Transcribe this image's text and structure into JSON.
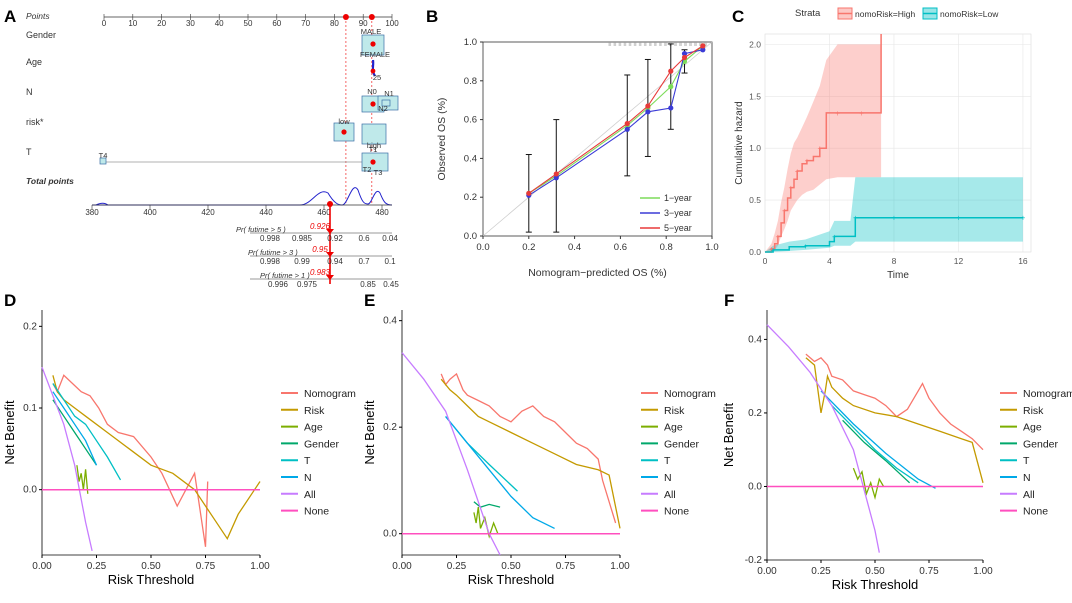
{
  "panel_labels": [
    "A",
    "B",
    "C",
    "D",
    "E",
    "F"
  ],
  "colors": {
    "nomogram": "#f8766d",
    "risk": "#c49a00",
    "age": "#7cae00",
    "gender": "#00a86b",
    "t": "#00bfc4",
    "n": "#00a9e8",
    "all": "#c77cff",
    "none": "#ff4fbf",
    "year1": "#7ddc5a",
    "year3": "#3b3bd6",
    "year5": "#e83a3a",
    "high": "#f8766d",
    "low": "#00bfc4"
  },
  "chart_data": [
    {
      "panel": "A",
      "type": "nomogram",
      "points_label": "Points",
      "points_ticks": [
        "0",
        "10",
        "20",
        "30",
        "40",
        "50",
        "60",
        "70",
        "80",
        "90",
        "100"
      ],
      "gender": {
        "label": "Gender",
        "levels": [
          "MALE",
          "FEMALE"
        ]
      },
      "age": {
        "label": "Age",
        "levels": [
          "25"
        ]
      },
      "n": {
        "label": "N",
        "levels": [
          "N0",
          "N1",
          "N2"
        ]
      },
      "risk": {
        "label": "risk*",
        "levels": [
          "low",
          "high"
        ]
      },
      "t": {
        "label": "T",
        "levels": [
          "T4",
          "T1",
          "T2",
          "T3"
        ]
      },
      "total_points": {
        "label": "Total points",
        "ticks": [
          "380",
          "400",
          "420",
          "440",
          "460",
          "480"
        ],
        "marker": "460"
      },
      "probabilities": [
        {
          "label": "Pr( futime > 5 )",
          "value": "0.926",
          "ticks": [
            "0.998",
            "0.985",
            "0.92",
            "0.6",
            "0.04"
          ]
        },
        {
          "label": "Pr( futime > 3 )",
          "value": "0.95",
          "ticks": [
            "0.998",
            "0.99",
            "0.94",
            "0.7",
            "0.1"
          ]
        },
        {
          "label": "Pr( futime > 1 )",
          "value": "0.983",
          "ticks": [
            "0.996",
            "0.975",
            "0.85",
            "0.45"
          ]
        }
      ]
    },
    {
      "panel": "B",
      "type": "line",
      "title": "",
      "xlabel": "Nomogram−predicted OS (%)",
      "ylabel": "Observed OS (%)",
      "xlim": [
        0,
        1
      ],
      "ylim": [
        0,
        1
      ],
      "xticks": [
        "0.0",
        "0.2",
        "0.4",
        "0.6",
        "0.8",
        "1.0"
      ],
      "yticks": [
        "0.0",
        "0.2",
        "0.4",
        "0.6",
        "0.8",
        "1.0"
      ],
      "series": [
        {
          "name": "1−year",
          "x": [
            0.2,
            0.32,
            0.63,
            0.72,
            0.82,
            0.88,
            0.96
          ],
          "y": [
            0.22,
            0.31,
            0.57,
            0.66,
            0.77,
            0.9,
            0.98
          ],
          "err": [
            0.2,
            0.29,
            0.26,
            0.25,
            0.22,
            0.06,
            0.02
          ]
        },
        {
          "name": "3−year",
          "x": [
            0.2,
            0.32,
            0.63,
            0.72,
            0.82,
            0.88,
            0.96
          ],
          "y": [
            0.21,
            0.3,
            0.55,
            0.64,
            0.66,
            0.94,
            0.96
          ]
        },
        {
          "name": "5−year",
          "x": [
            0.2,
            0.32,
            0.63,
            0.72,
            0.82,
            0.88,
            0.96
          ],
          "y": [
            0.22,
            0.32,
            0.58,
            0.67,
            0.85,
            0.92,
            0.98
          ]
        }
      ]
    },
    {
      "panel": "C",
      "type": "line",
      "legend_title": "Strata",
      "xlabel": "Time",
      "ylabel": "Cumulative hazard",
      "xlim": [
        0,
        16.5
      ],
      "ylim": [
        0,
        2.1
      ],
      "xticks": [
        "0",
        "4",
        "8",
        "12",
        "16"
      ],
      "yticks": [
        "0.0",
        "0.5",
        "1.0",
        "1.5",
        "2.0"
      ],
      "series": [
        {
          "name": "nomoRisk=High",
          "x": [
            0,
            0.4,
            0.6,
            0.8,
            1.0,
            1.2,
            1.4,
            1.6,
            1.8,
            2.0,
            2.3,
            2.6,
            3.0,
            3.4,
            3.8,
            4.5,
            5.0,
            6.0,
            7.2,
            7.2
          ],
          "y": [
            0,
            0.03,
            0.08,
            0.15,
            0.28,
            0.4,
            0.52,
            0.62,
            0.7,
            0.78,
            0.85,
            0.88,
            0.92,
            1.0,
            1.34,
            1.34,
            1.34,
            1.34,
            1.34,
            2.3
          ],
          "lower": [
            0,
            0,
            0.02,
            0.06,
            0.15,
            0.22,
            0.3,
            0.4,
            0.45,
            0.5,
            0.55,
            0.58,
            0.6,
            0.65,
            0.7,
            0.72,
            0.72,
            0.72,
            0.72,
            0.72
          ],
          "upper": [
            0,
            0.08,
            0.18,
            0.3,
            0.48,
            0.62,
            0.8,
            0.95,
            1.05,
            1.1,
            1.2,
            1.3,
            1.45,
            1.6,
            1.85,
            2.0,
            2.0,
            2.0,
            2.0,
            2.1
          ]
        },
        {
          "name": "nomoRisk=Low",
          "x": [
            0,
            0.5,
            1.5,
            2.5,
            4.0,
            4.3,
            5.3,
            5.6,
            6.0,
            8.0,
            10.0,
            12.0,
            14.0,
            16.0
          ],
          "y": [
            0,
            0.02,
            0.05,
            0.06,
            0.1,
            0.15,
            0.15,
            0.33,
            0.33,
            0.33,
            0.33,
            0.33,
            0.33,
            0.33
          ],
          "lower": [
            0,
            0,
            0.01,
            0.02,
            0.04,
            0.06,
            0.06,
            0.1,
            0.1,
            0.1,
            0.1,
            0.1,
            0.1,
            0.1
          ],
          "upper": [
            0,
            0.06,
            0.1,
            0.12,
            0.2,
            0.3,
            0.3,
            0.72,
            0.72,
            0.72,
            0.72,
            0.72,
            0.72,
            0.72
          ]
        }
      ]
    },
    {
      "panel": "D",
      "type": "line",
      "xlabel": "Risk Threshold",
      "ylabel": "Net Benefit",
      "xlim": [
        0,
        1
      ],
      "ylim": [
        -0.08,
        0.22
      ],
      "xticks": [
        "0.00",
        "0.25",
        "0.50",
        "0.75",
        "1.00"
      ],
      "yticks": [
        "0.0",
        "0.1",
        "0.2"
      ],
      "legend": [
        "Nomogram",
        "Risk",
        "Age",
        "Gender",
        "T",
        "N",
        "All",
        "None"
      ],
      "series": [
        {
          "name": "Nomogram",
          "x": [
            0.05,
            0.07,
            0.1,
            0.14,
            0.18,
            0.22,
            0.26,
            0.3,
            0.35,
            0.42,
            0.5,
            0.55,
            0.62,
            0.7,
            0.75,
            0.76
          ],
          "y": [
            0.13,
            0.12,
            0.14,
            0.13,
            0.12,
            0.115,
            0.1,
            0.08,
            0.07,
            0.065,
            0.04,
            0.02,
            -0.02,
            0.02,
            -0.07,
            0.01
          ]
        },
        {
          "name": "Risk",
          "x": [
            0.05,
            0.07,
            0.1,
            0.15,
            0.2,
            0.3,
            0.4,
            0.5,
            0.6,
            0.7,
            0.8,
            0.85,
            0.9,
            1.0
          ],
          "y": [
            0.14,
            0.12,
            0.11,
            0.1,
            0.09,
            0.07,
            0.05,
            0.03,
            0.02,
            0.0,
            -0.04,
            -0.06,
            -0.03,
            0.01
          ]
        },
        {
          "name": "Age",
          "x": [
            0.16,
            0.17,
            0.18,
            0.19,
            0.2,
            0.21
          ],
          "y": [
            0.03,
            0.01,
            0.02,
            0.0,
            0.025,
            -0.005
          ]
        },
        {
          "name": "Gender",
          "x": [
            0.05,
            0.1,
            0.15,
            0.2,
            0.25
          ],
          "y": [
            0.11,
            0.09,
            0.07,
            0.05,
            0.03
          ]
        },
        {
          "name": "T",
          "x": [
            0.05,
            0.1,
            0.15,
            0.2,
            0.25,
            0.3,
            0.36
          ],
          "y": [
            0.13,
            0.11,
            0.09,
            0.08,
            0.06,
            0.04,
            0.012
          ]
        },
        {
          "name": "N",
          "x": [
            0.05,
            0.1,
            0.15,
            0.2,
            0.25
          ],
          "y": [
            0.12,
            0.1,
            0.08,
            0.06,
            0.03
          ]
        },
        {
          "name": "All",
          "x": [
            0.0,
            0.1,
            0.15,
            0.2,
            0.23
          ],
          "y": [
            0.15,
            0.08,
            0.03,
            -0.04,
            -0.075
          ]
        },
        {
          "name": "None",
          "x": [
            0,
            1
          ],
          "y": [
            0,
            0
          ]
        }
      ]
    },
    {
      "panel": "E",
      "type": "line",
      "xlabel": "Risk Threshold",
      "ylabel": "Net Benefit",
      "xlim": [
        0,
        1
      ],
      "ylim": [
        -0.04,
        0.42
      ],
      "xticks": [
        "0.00",
        "0.25",
        "0.50",
        "0.75",
        "1.00"
      ],
      "yticks": [
        "0.0",
        "0.2",
        "0.4"
      ],
      "legend": [
        "Nomogram",
        "Risk",
        "Age",
        "Gender",
        "T",
        "N",
        "All",
        "None"
      ],
      "series": [
        {
          "name": "Nomogram",
          "x": [
            0.18,
            0.2,
            0.22,
            0.25,
            0.28,
            0.3,
            0.35,
            0.4,
            0.45,
            0.5,
            0.55,
            0.6,
            0.65,
            0.7,
            0.75,
            0.8,
            0.85,
            0.9,
            0.92,
            0.95,
            0.98
          ],
          "y": [
            0.3,
            0.28,
            0.29,
            0.3,
            0.27,
            0.26,
            0.25,
            0.24,
            0.22,
            0.21,
            0.23,
            0.24,
            0.22,
            0.21,
            0.19,
            0.17,
            0.16,
            0.14,
            0.1,
            0.06,
            0.02
          ]
        },
        {
          "name": "Risk",
          "x": [
            0.18,
            0.22,
            0.25,
            0.3,
            0.35,
            0.4,
            0.5,
            0.6,
            0.7,
            0.8,
            0.9,
            0.95,
            1.0
          ],
          "y": [
            0.29,
            0.27,
            0.26,
            0.24,
            0.22,
            0.21,
            0.19,
            0.17,
            0.15,
            0.13,
            0.12,
            0.11,
            0.01
          ]
        },
        {
          "name": "Age",
          "x": [
            0.33,
            0.34,
            0.35,
            0.36,
            0.38,
            0.4,
            0.42,
            0.44
          ],
          "y": [
            0.04,
            0.02,
            0.05,
            0.01,
            0.03,
            -0.005,
            0.02,
            0.0
          ]
        },
        {
          "name": "Gender",
          "x": [
            0.33,
            0.36,
            0.4,
            0.45
          ],
          "y": [
            0.06,
            0.05,
            0.055,
            0.05
          ]
        },
        {
          "name": "T",
          "x": [
            0.2,
            0.3,
            0.4,
            0.53
          ],
          "y": [
            0.22,
            0.17,
            0.13,
            0.08
          ]
        },
        {
          "name": "N",
          "x": [
            0.2,
            0.3,
            0.4,
            0.5,
            0.6,
            0.7
          ],
          "y": [
            0.22,
            0.17,
            0.12,
            0.07,
            0.03,
            0.01
          ]
        },
        {
          "name": "All",
          "x": [
            0.0,
            0.1,
            0.2,
            0.3,
            0.4,
            0.45
          ],
          "y": [
            0.34,
            0.29,
            0.23,
            0.12,
            0.0,
            -0.04
          ]
        },
        {
          "name": "None",
          "x": [
            0,
            1
          ],
          "y": [
            0,
            0
          ]
        }
      ]
    },
    {
      "panel": "F",
      "type": "line",
      "xlabel": "Risk Threshold",
      "ylabel": "Net Benefit",
      "xlim": [
        0,
        1
      ],
      "ylim": [
        -0.2,
        0.48
      ],
      "xticks": [
        "0.00",
        "0.25",
        "0.50",
        "0.75",
        "1.00"
      ],
      "yticks": [
        "-0.2",
        "0.0",
        "0.2",
        "0.4"
      ],
      "legend": [
        "Nomogram",
        "Risk",
        "Age",
        "Gender",
        "T",
        "N",
        "All",
        "None"
      ],
      "series": [
        {
          "name": "Nomogram",
          "x": [
            0.18,
            0.22,
            0.25,
            0.28,
            0.3,
            0.35,
            0.4,
            0.45,
            0.5,
            0.55,
            0.6,
            0.65,
            0.7,
            0.72,
            0.75,
            0.8,
            0.85,
            0.9,
            0.95,
            1.0
          ],
          "y": [
            0.36,
            0.34,
            0.35,
            0.33,
            0.3,
            0.29,
            0.26,
            0.25,
            0.24,
            0.22,
            0.19,
            0.21,
            0.26,
            0.28,
            0.24,
            0.2,
            0.17,
            0.15,
            0.13,
            0.1
          ]
        },
        {
          "name": "Risk",
          "x": [
            0.18,
            0.22,
            0.25,
            0.27,
            0.28,
            0.3,
            0.35,
            0.4,
            0.5,
            0.6,
            0.7,
            0.8,
            0.9,
            0.95,
            1.0
          ],
          "y": [
            0.35,
            0.33,
            0.2,
            0.26,
            0.3,
            0.27,
            0.24,
            0.22,
            0.2,
            0.19,
            0.17,
            0.15,
            0.13,
            0.12,
            0.01
          ]
        },
        {
          "name": "Age",
          "x": [
            0.4,
            0.42,
            0.44,
            0.46,
            0.48,
            0.5,
            0.52,
            0.54
          ],
          "y": [
            0.05,
            0.02,
            0.04,
            -0.02,
            0.01,
            -0.03,
            0.02,
            0.0
          ]
        },
        {
          "name": "Gender",
          "x": [
            0.35,
            0.45,
            0.55,
            0.66
          ],
          "y": [
            0.18,
            0.12,
            0.07,
            0.01
          ]
        },
        {
          "name": "T",
          "x": [
            0.3,
            0.4,
            0.5,
            0.6,
            0.7
          ],
          "y": [
            0.22,
            0.16,
            0.1,
            0.05,
            0.01
          ]
        },
        {
          "name": "N",
          "x": [
            0.25,
            0.4,
            0.55,
            0.7,
            0.78
          ],
          "y": [
            0.26,
            0.17,
            0.09,
            0.02,
            -0.005
          ]
        },
        {
          "name": "All",
          "x": [
            0.0,
            0.1,
            0.2,
            0.3,
            0.4,
            0.5,
            0.52
          ],
          "y": [
            0.44,
            0.38,
            0.31,
            0.22,
            0.1,
            -0.12,
            -0.18
          ]
        },
        {
          "name": "None",
          "x": [
            0,
            1
          ],
          "y": [
            0,
            0
          ]
        }
      ]
    }
  ]
}
